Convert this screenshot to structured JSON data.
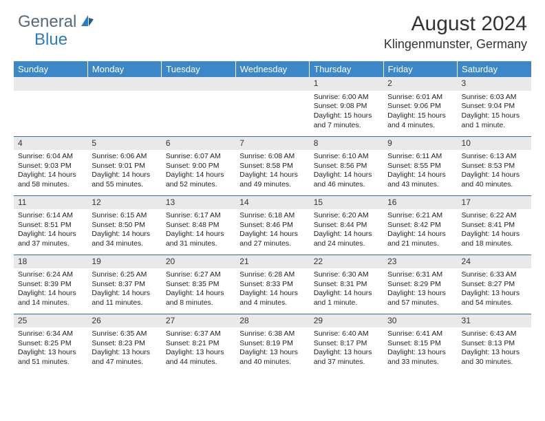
{
  "logo": {
    "text1": "General",
    "text2": "Blue"
  },
  "title": "August 2024",
  "location": "Klingenmunster, Germany",
  "colors": {
    "header_bg": "#3b87c8",
    "daynum_bg": "#e9e9e9",
    "row_border": "#2b6ea8",
    "logo_gray": "#5a6874",
    "logo_blue": "#2b7bbf"
  },
  "weekdays": [
    "Sunday",
    "Monday",
    "Tuesday",
    "Wednesday",
    "Thursday",
    "Friday",
    "Saturday"
  ],
  "weeks": [
    [
      null,
      null,
      null,
      null,
      {
        "d": "1",
        "sr": "6:00 AM",
        "ss": "9:08 PM",
        "dl": "Daylight: 15 hours and 7 minutes."
      },
      {
        "d": "2",
        "sr": "6:01 AM",
        "ss": "9:06 PM",
        "dl": "Daylight: 15 hours and 4 minutes."
      },
      {
        "d": "3",
        "sr": "6:03 AM",
        "ss": "9:04 PM",
        "dl": "Daylight: 15 hours and 1 minute."
      }
    ],
    [
      {
        "d": "4",
        "sr": "6:04 AM",
        "ss": "9:03 PM",
        "dl": "Daylight: 14 hours and 58 minutes."
      },
      {
        "d": "5",
        "sr": "6:06 AM",
        "ss": "9:01 PM",
        "dl": "Daylight: 14 hours and 55 minutes."
      },
      {
        "d": "6",
        "sr": "6:07 AM",
        "ss": "9:00 PM",
        "dl": "Daylight: 14 hours and 52 minutes."
      },
      {
        "d": "7",
        "sr": "6:08 AM",
        "ss": "8:58 PM",
        "dl": "Daylight: 14 hours and 49 minutes."
      },
      {
        "d": "8",
        "sr": "6:10 AM",
        "ss": "8:56 PM",
        "dl": "Daylight: 14 hours and 46 minutes."
      },
      {
        "d": "9",
        "sr": "6:11 AM",
        "ss": "8:55 PM",
        "dl": "Daylight: 14 hours and 43 minutes."
      },
      {
        "d": "10",
        "sr": "6:13 AM",
        "ss": "8:53 PM",
        "dl": "Daylight: 14 hours and 40 minutes."
      }
    ],
    [
      {
        "d": "11",
        "sr": "6:14 AM",
        "ss": "8:51 PM",
        "dl": "Daylight: 14 hours and 37 minutes."
      },
      {
        "d": "12",
        "sr": "6:15 AM",
        "ss": "8:50 PM",
        "dl": "Daylight: 14 hours and 34 minutes."
      },
      {
        "d": "13",
        "sr": "6:17 AM",
        "ss": "8:48 PM",
        "dl": "Daylight: 14 hours and 31 minutes."
      },
      {
        "d": "14",
        "sr": "6:18 AM",
        "ss": "8:46 PM",
        "dl": "Daylight: 14 hours and 27 minutes."
      },
      {
        "d": "15",
        "sr": "6:20 AM",
        "ss": "8:44 PM",
        "dl": "Daylight: 14 hours and 24 minutes."
      },
      {
        "d": "16",
        "sr": "6:21 AM",
        "ss": "8:42 PM",
        "dl": "Daylight: 14 hours and 21 minutes."
      },
      {
        "d": "17",
        "sr": "6:22 AM",
        "ss": "8:41 PM",
        "dl": "Daylight: 14 hours and 18 minutes."
      }
    ],
    [
      {
        "d": "18",
        "sr": "6:24 AM",
        "ss": "8:39 PM",
        "dl": "Daylight: 14 hours and 14 minutes."
      },
      {
        "d": "19",
        "sr": "6:25 AM",
        "ss": "8:37 PM",
        "dl": "Daylight: 14 hours and 11 minutes."
      },
      {
        "d": "20",
        "sr": "6:27 AM",
        "ss": "8:35 PM",
        "dl": "Daylight: 14 hours and 8 minutes."
      },
      {
        "d": "21",
        "sr": "6:28 AM",
        "ss": "8:33 PM",
        "dl": "Daylight: 14 hours and 4 minutes."
      },
      {
        "d": "22",
        "sr": "6:30 AM",
        "ss": "8:31 PM",
        "dl": "Daylight: 14 hours and 1 minute."
      },
      {
        "d": "23",
        "sr": "6:31 AM",
        "ss": "8:29 PM",
        "dl": "Daylight: 13 hours and 57 minutes."
      },
      {
        "d": "24",
        "sr": "6:33 AM",
        "ss": "8:27 PM",
        "dl": "Daylight: 13 hours and 54 minutes."
      }
    ],
    [
      {
        "d": "25",
        "sr": "6:34 AM",
        "ss": "8:25 PM",
        "dl": "Daylight: 13 hours and 51 minutes."
      },
      {
        "d": "26",
        "sr": "6:35 AM",
        "ss": "8:23 PM",
        "dl": "Daylight: 13 hours and 47 minutes."
      },
      {
        "d": "27",
        "sr": "6:37 AM",
        "ss": "8:21 PM",
        "dl": "Daylight: 13 hours and 44 minutes."
      },
      {
        "d": "28",
        "sr": "6:38 AM",
        "ss": "8:19 PM",
        "dl": "Daylight: 13 hours and 40 minutes."
      },
      {
        "d": "29",
        "sr": "6:40 AM",
        "ss": "8:17 PM",
        "dl": "Daylight: 13 hours and 37 minutes."
      },
      {
        "d": "30",
        "sr": "6:41 AM",
        "ss": "8:15 PM",
        "dl": "Daylight: 13 hours and 33 minutes."
      },
      {
        "d": "31",
        "sr": "6:43 AM",
        "ss": "8:13 PM",
        "dl": "Daylight: 13 hours and 30 minutes."
      }
    ]
  ],
  "labels": {
    "sunrise": "Sunrise:",
    "sunset": "Sunset:"
  }
}
